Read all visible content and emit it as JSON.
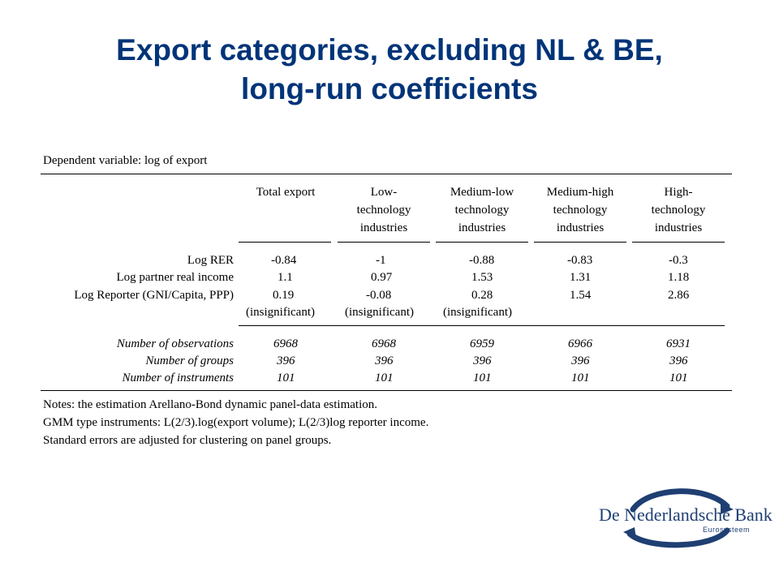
{
  "title_line1": "Export categories, excluding NL & BE,",
  "title_line2": "long-run coefficients",
  "table": {
    "caption": "Dependent variable: log of export",
    "columns": [
      [
        "Total export",
        "",
        ""
      ],
      [
        "Low-",
        "technology",
        "industries"
      ],
      [
        "Medium-low",
        "technology",
        "industries"
      ],
      [
        "Medium-high",
        "technology",
        "industries"
      ],
      [
        "High-",
        "technology",
        "industries"
      ]
    ],
    "rows": [
      {
        "label": "Log RER",
        "values": [
          "-0.84",
          "-1",
          "-0.88",
          "-0.83",
          "-0.3"
        ]
      },
      {
        "label": "Log partner real income",
        "values": [
          "1.1",
          "0.97",
          "1.53",
          "1.31",
          "1.18"
        ]
      },
      {
        "label": "Log Reporter (GNI/Capita, PPP)",
        "values": [
          "0.19",
          "-0.08",
          "0.28",
          "1.54",
          "2.86"
        ]
      },
      {
        "label": "",
        "values": [
          "(insignificant)",
          "(insignificant)",
          "(insignificant)",
          "",
          ""
        ]
      }
    ],
    "stats": [
      {
        "label": "Number of observations",
        "values": [
          "6968",
          "6968",
          "6959",
          "6966",
          "6931"
        ]
      },
      {
        "label": "Number of groups",
        "values": [
          "396",
          "396",
          "396",
          "396",
          "396"
        ]
      },
      {
        "label": "Number of instruments",
        "values": [
          "101",
          "101",
          "101",
          "101",
          "101"
        ]
      }
    ],
    "notes": [
      "Notes: the estimation Arellano-Bond dynamic panel-data estimation.",
      "GMM type instruments: L(2/3).log(export volume); L(2/3)log reporter income.",
      "Standard errors are adjusted for clustering on panel groups."
    ]
  },
  "logo": {
    "name": "De Nederlandsche Bank",
    "sub": "Eurosysteem"
  },
  "colors": {
    "title": "#003478",
    "logo": "#1f3f73"
  }
}
